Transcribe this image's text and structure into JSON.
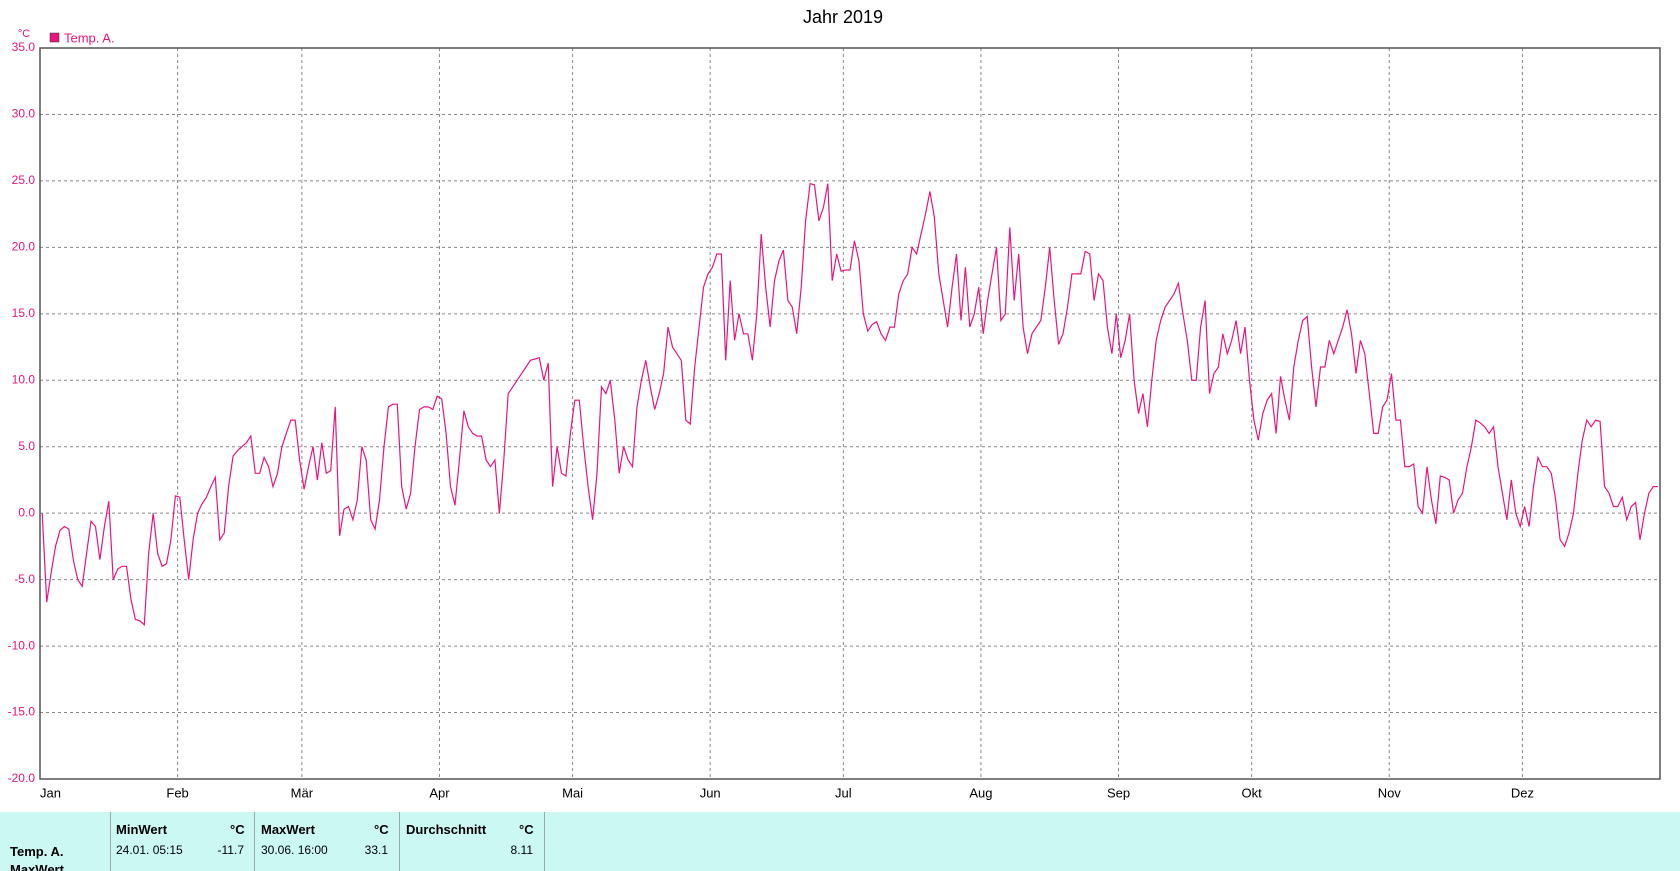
{
  "chart_data": {
    "type": "line",
    "title": "Jahr 2019",
    "y_unit": "°C",
    "categories": [
      "Jan",
      null,
      null,
      null,
      null,
      null,
      null,
      null,
      null,
      null,
      null,
      null,
      null,
      null,
      null,
      null,
      null,
      null,
      null,
      null,
      null,
      null,
      null,
      null,
      null,
      null,
      null,
      null,
      null,
      null,
      null,
      "Feb",
      null,
      null,
      null,
      null,
      null,
      null,
      null,
      null,
      null,
      null,
      null,
      null,
      null,
      null,
      null,
      null,
      null,
      null,
      null,
      null,
      null,
      null,
      null,
      null,
      null,
      null,
      null,
      "Mär",
      null,
      null,
      null,
      null,
      null,
      null,
      null,
      null,
      null,
      null,
      null,
      null,
      null,
      null,
      null,
      null,
      null,
      null,
      null,
      null,
      null,
      null,
      null,
      null,
      null,
      null,
      null,
      null,
      null,
      null,
      "Apr",
      null,
      null,
      null,
      null,
      null,
      null,
      null,
      null,
      null,
      null,
      null,
      null,
      null,
      null,
      null,
      null,
      null,
      null,
      null,
      null,
      null,
      null,
      null,
      null,
      null,
      null,
      null,
      null,
      null,
      "Mai",
      null,
      null,
      null,
      null,
      null,
      null,
      null,
      null,
      null,
      null,
      null,
      null,
      null,
      null,
      null,
      null,
      null,
      null,
      null,
      null,
      null,
      null,
      null,
      null,
      null,
      null,
      null,
      null,
      null,
      null,
      "Jun",
      null,
      null,
      null,
      null,
      null,
      null,
      null,
      null,
      null,
      null,
      null,
      null,
      null,
      null,
      null,
      null,
      null,
      null,
      null,
      null,
      null,
      null,
      null,
      null,
      null,
      null,
      null,
      null,
      null,
      "Jul",
      null,
      null,
      null,
      null,
      null,
      null,
      null,
      null,
      null,
      null,
      null,
      null,
      null,
      null,
      null,
      null,
      null,
      null,
      null,
      null,
      null,
      null,
      null,
      null,
      null,
      null,
      null,
      null,
      null,
      null,
      "Aug",
      null,
      null,
      null,
      null,
      null,
      null,
      null,
      null,
      null,
      null,
      null,
      null,
      null,
      null,
      null,
      null,
      null,
      null,
      null,
      null,
      null,
      null,
      null,
      null,
      null,
      null,
      null,
      null,
      null,
      null,
      "Sep",
      null,
      null,
      null,
      null,
      null,
      null,
      null,
      null,
      null,
      null,
      null,
      null,
      null,
      null,
      null,
      null,
      null,
      null,
      null,
      null,
      null,
      null,
      null,
      null,
      null,
      null,
      null,
      null,
      null,
      "Okt",
      null,
      null,
      null,
      null,
      null,
      null,
      null,
      null,
      null,
      null,
      null,
      null,
      null,
      null,
      null,
      null,
      null,
      null,
      null,
      null,
      null,
      null,
      null,
      null,
      null,
      null,
      null,
      null,
      null,
      null,
      "Nov",
      null,
      null,
      null,
      null,
      null,
      null,
      null,
      null,
      null,
      null,
      null,
      null,
      null,
      null,
      null,
      null,
      null,
      null,
      null,
      null,
      null,
      null,
      null,
      null,
      null,
      null,
      null,
      null,
      null,
      "Dez",
      null,
      null,
      null,
      null,
      null,
      null,
      null,
      null,
      null,
      null,
      null,
      null,
      null,
      null,
      null,
      null,
      null,
      null,
      null,
      null,
      null,
      null,
      null,
      null,
      null,
      null,
      null,
      null,
      null,
      null
    ],
    "series": [
      {
        "name": "Temp. A.",
        "color": "#e8157f",
        "values": [
          0,
          -6.7,
          -4.5,
          -2.5,
          -1.3,
          -1,
          -1.2,
          -3.5,
          -5,
          -5.5,
          -3,
          -0.6,
          -1,
          -3.5,
          -1,
          0.9,
          -5,
          -4.2,
          -4,
          -4,
          -6.5,
          -8,
          -8.1,
          -8.4,
          -3,
          0,
          -3,
          -4,
          -3.8,
          -2,
          1.3,
          1.2,
          -2,
          -5,
          -2,
          0,
          0.7,
          1.2,
          2,
          2.7,
          -2,
          -1.5,
          2,
          4.3,
          4.7,
          5,
          5.3,
          5.8,
          3,
          3,
          4.2,
          3.5,
          2,
          3,
          5,
          6,
          7,
          7,
          4,
          1.8,
          3.5,
          5,
          2.5,
          5.3,
          3,
          3.2,
          8,
          -1.7,
          0.3,
          0.5,
          -0.5,
          1,
          5,
          4,
          -0.5,
          -1.2,
          1,
          5,
          8,
          8.2,
          8.2,
          2,
          0.3,
          1.5,
          5,
          7.8,
          8,
          8,
          7.8,
          8.8,
          8.6,
          6,
          2,
          0.6,
          4,
          7.7,
          6.5,
          6,
          5.8,
          5.8,
          4,
          3.5,
          4,
          0,
          4,
          9,
          9.5,
          10,
          10.5,
          11,
          11.5,
          11.6,
          11.7,
          10,
          11.3,
          2,
          5,
          3,
          2.8,
          6,
          8.5,
          8.5,
          5,
          2,
          -0.5,
          3,
          9.5,
          9,
          10,
          7,
          3,
          5,
          4,
          3.5,
          8,
          10,
          11.5,
          9.5,
          7.8,
          9,
          10.5,
          14,
          12.5,
          12,
          11.5,
          7,
          6.7,
          11,
          14,
          17,
          18,
          18.5,
          19.5,
          19.5,
          11.5,
          17.5,
          13,
          15,
          13.5,
          13.5,
          11.5,
          15,
          21,
          17,
          14,
          17.5,
          19,
          19.8,
          16,
          15.5,
          13.5,
          17,
          22,
          24.8,
          24.7,
          22,
          23,
          24.8,
          17.5,
          19.5,
          18.2,
          18.3,
          18.3,
          20.5,
          19,
          15,
          13.7,
          14.2,
          14.4,
          13.5,
          13,
          14,
          14,
          16.5,
          17.5,
          18,
          20,
          19.5,
          21,
          22.5,
          24.2,
          22.3,
          18,
          16,
          14,
          17,
          19.5,
          14.5,
          18.5,
          14,
          15,
          17,
          13.5,
          16,
          18,
          20,
          14.5,
          15,
          21.5,
          16,
          19.5,
          14,
          12,
          13.5,
          14,
          14.5,
          17,
          20,
          16,
          12.7,
          13.5,
          15.5,
          18,
          18,
          18,
          19.7,
          19.5,
          16,
          18,
          17.5,
          14,
          12,
          15,
          11.7,
          13,
          15,
          10,
          7.5,
          9,
          6.5,
          10,
          13,
          14.5,
          15.5,
          16,
          16.5,
          17.3,
          15,
          13,
          10,
          10,
          14,
          16,
          9,
          10.5,
          11,
          13.5,
          12,
          13,
          14.5,
          12,
          14,
          10,
          7,
          5.5,
          7.5,
          8.5,
          9,
          6,
          10.3,
          8.5,
          7,
          11,
          13,
          14.5,
          14.8,
          11,
          8,
          11,
          11,
          13,
          12,
          13,
          14,
          15.3,
          13.5,
          10.5,
          13,
          12,
          9,
          6,
          6,
          8,
          8.5,
          10.5,
          7,
          7,
          3.5,
          3.5,
          3.7,
          0.5,
          0,
          3.5,
          1,
          -0.8,
          2.8,
          2.7,
          2.5,
          0,
          1,
          1.5,
          3.5,
          5,
          7,
          6.8,
          6.5,
          6,
          6.5,
          3.5,
          1.5,
          -0.5,
          2.5,
          0,
          -1,
          0.5,
          -1,
          2,
          4.2,
          3.5,
          3.5,
          3,
          1,
          -2,
          -2.5,
          -1.5,
          0,
          3,
          5.5,
          7,
          6.5,
          7,
          6.9,
          2,
          1.5,
          0.5,
          0.5,
          1.2,
          -0.5,
          0.5,
          0.8,
          -2,
          0,
          1.5,
          2,
          2
        ]
      }
    ],
    "ylim": [
      -20,
      35
    ],
    "yticks": [
      {
        "value": -20,
        "label": "-20.0"
      },
      {
        "value": -15,
        "label": "-15.0"
      },
      {
        "value": -10,
        "label": "-10.0"
      },
      {
        "value": -5,
        "label": "-5.0"
      },
      {
        "value": 0,
        "label": "0.0"
      },
      {
        "value": 5,
        "label": "5.0"
      },
      {
        "value": 10,
        "label": "10.0"
      },
      {
        "value": 15,
        "label": "15.0"
      },
      {
        "value": 20,
        "label": "20.0"
      },
      {
        "value": 25,
        "label": "25.0"
      },
      {
        "value": 30,
        "label": "30.0"
      },
      {
        "value": 35,
        "label": "35.0"
      }
    ],
    "grid": true,
    "legend": "top-left"
  },
  "stats": {
    "row_label": "Temp. A.",
    "row_label_2": "MaxWert",
    "headers": [
      "MinWert",
      "°C",
      "MaxWert",
      "°C",
      "Durchschnitt",
      "°C"
    ],
    "min_time": "24.01. 05:15",
    "min_value": "-11.7",
    "max_time": "30.06. 16:00",
    "max_value": "33.1",
    "average": "8.11"
  }
}
